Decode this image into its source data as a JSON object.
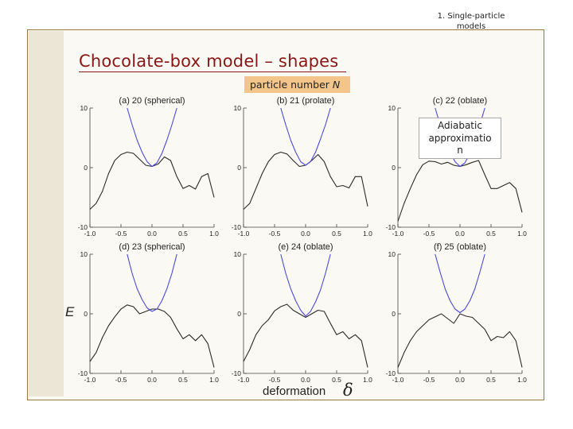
{
  "header": {
    "line1": "1. Single-particle",
    "line2": "models"
  },
  "slide_title": "Chocolate-box model – shapes",
  "particle_number_label": "particle number",
  "particle_number_symbol": "N",
  "adiabatic_box": {
    "line1": "Adiabatic",
    "line2": "approximatio",
    "line3": "n"
  },
  "y_axis_label": "E",
  "x_axis_label": "deformation",
  "x_axis_symbol": "δ",
  "colors": {
    "blue_curve": "#4a4ae0",
    "black_curve": "#2a2a2a",
    "title": "#8a1616",
    "highlight": "#f3c58b",
    "frame": "#9a7a3a"
  },
  "chart_data": [
    {
      "type": "line",
      "title": "(a) 20 (spherical)",
      "xlim": [
        -1.0,
        1.0
      ],
      "ylim": [
        -10,
        10
      ],
      "xticks": [
        "-1.0",
        "-0.5",
        "0.0",
        "0.5",
        "1.0"
      ],
      "yticks": [
        "10",
        "0",
        "-10"
      ],
      "series": [
        {
          "x": [
            -1.0,
            -0.9,
            -0.8,
            -0.7,
            -0.6,
            -0.5,
            -0.4,
            -0.3,
            -0.2,
            -0.1,
            0.0,
            0.1,
            0.2,
            0.3,
            0.4,
            0.5,
            0.6,
            0.7,
            0.8,
            0.9,
            1.0
          ],
          "y": [
            -7.0,
            -6.0,
            -4.0,
            -1.0,
            1.2,
            2.2,
            2.6,
            2.4,
            1.4,
            0.4,
            0.2,
            0.6,
            1.8,
            1.2,
            -1.5,
            -3.5,
            -3.0,
            -3.6,
            -1.5,
            -1.0,
            -5.0
          ]
        },
        {
          "x": [
            -0.4,
            -0.32,
            -0.24,
            -0.16,
            -0.08,
            0.0,
            0.08,
            0.16,
            0.24,
            0.32,
            0.4
          ],
          "y": [
            10,
            7.2,
            4.6,
            2.6,
            1.0,
            0.2,
            0.8,
            2.4,
            4.6,
            7.2,
            10
          ]
        }
      ]
    },
    {
      "type": "line",
      "title": "(b) 21 (prolate)",
      "xlim": [
        -1.0,
        1.0
      ],
      "ylim": [
        -10,
        10
      ],
      "xticks": [
        "-1.0",
        "-0.5",
        "0.0",
        "0.5",
        "1.0"
      ],
      "yticks": [
        "10",
        "0",
        "-10"
      ],
      "series": [
        {
          "x": [
            -1.0,
            -0.9,
            -0.8,
            -0.7,
            -0.6,
            -0.5,
            -0.4,
            -0.3,
            -0.2,
            -0.1,
            0.0,
            0.1,
            0.2,
            0.3,
            0.4,
            0.5,
            0.6,
            0.7,
            0.8,
            0.9,
            1.0
          ],
          "y": [
            -7.0,
            -6.0,
            -3.5,
            -1.0,
            1.0,
            2.2,
            2.6,
            2.3,
            1.2,
            0.2,
            0.4,
            1.2,
            2.2,
            1.0,
            -1.5,
            -3.2,
            -3.0,
            -3.4,
            -1.5,
            -1.5,
            -6.5
          ]
        },
        {
          "x": [
            -0.4,
            -0.32,
            -0.24,
            -0.16,
            -0.08,
            0.0,
            0.08,
            0.16,
            0.24,
            0.32,
            0.4
          ],
          "y": [
            10,
            7.2,
            4.6,
            2.6,
            1.0,
            0.4,
            1.0,
            2.6,
            4.8,
            7.2,
            10
          ]
        }
      ]
    },
    {
      "type": "line",
      "title": "(c) 22 (oblate)",
      "xlim": [
        -1.0,
        1.0
      ],
      "ylim": [
        -10,
        10
      ],
      "xticks": [
        "-1.0",
        "-0.5",
        "0.0",
        "0.5",
        "1.0"
      ],
      "yticks": [
        "10",
        "0",
        "-10"
      ],
      "series": [
        {
          "x": [
            -1.0,
            -0.9,
            -0.8,
            -0.7,
            -0.6,
            -0.5,
            -0.4,
            -0.3,
            -0.2,
            -0.1,
            0.0,
            0.1,
            0.2,
            0.3,
            0.4,
            0.5,
            0.6,
            0.7,
            0.8,
            0.9,
            1.0
          ],
          "y": [
            -9.0,
            -6.0,
            -3.5,
            -1.2,
            0.5,
            1.1,
            1.0,
            0.6,
            0.9,
            0.4,
            0.2,
            0.5,
            0.9,
            1.2,
            -1.2,
            -3.5,
            -3.5,
            -3.0,
            -2.5,
            -3.5,
            -7.5
          ]
        },
        {
          "x": [
            -0.4,
            -0.32,
            -0.24,
            -0.16,
            -0.08,
            0.0,
            0.08,
            0.16,
            0.24,
            0.32,
            0.4
          ],
          "y": [
            10,
            7.2,
            4.6,
            2.6,
            1.0,
            0.2,
            0.8,
            2.4,
            4.6,
            7.2,
            10
          ]
        }
      ]
    },
    {
      "type": "line",
      "title": "(d) 23 (spherical)",
      "xlim": [
        -1.0,
        1.0
      ],
      "ylim": [
        -10,
        10
      ],
      "xticks": [
        "-1.0",
        "-0.5",
        "0.0",
        "0.5",
        "1.0"
      ],
      "yticks": [
        "10",
        "0",
        "-10"
      ],
      "series": [
        {
          "x": [
            -1.0,
            -0.9,
            -0.8,
            -0.7,
            -0.6,
            -0.5,
            -0.4,
            -0.3,
            -0.2,
            -0.1,
            0.0,
            0.1,
            0.2,
            0.3,
            0.4,
            0.5,
            0.6,
            0.7,
            0.8,
            0.9,
            1.0
          ],
          "y": [
            -8.0,
            -6.5,
            -4.0,
            -2.0,
            -0.5,
            0.8,
            1.5,
            1.2,
            0.0,
            0.4,
            0.8,
            0.8,
            0.4,
            -0.6,
            -2.5,
            -4.2,
            -3.5,
            -4.5,
            -3.5,
            -5.0,
            -9.0
          ]
        },
        {
          "x": [
            -0.4,
            -0.32,
            -0.24,
            -0.16,
            -0.08,
            0.0,
            0.08,
            0.16,
            0.24,
            0.32,
            0.4
          ],
          "y": [
            10,
            6.8,
            4.2,
            2.4,
            1.0,
            0.4,
            0.8,
            2.2,
            4.2,
            6.8,
            10
          ]
        }
      ]
    },
    {
      "type": "line",
      "title": "(e) 24 (oblate)",
      "xlim": [
        -1.0,
        1.0
      ],
      "ylim": [
        -10,
        10
      ],
      "xticks": [
        "-1.0",
        "-0.5",
        "0.0",
        "0.5",
        "1.0"
      ],
      "yticks": [
        "10",
        "0",
        "-10"
      ],
      "series": [
        {
          "x": [
            -1.0,
            -0.9,
            -0.8,
            -0.7,
            -0.6,
            -0.5,
            -0.4,
            -0.3,
            -0.2,
            -0.1,
            0.0,
            0.1,
            0.2,
            0.3,
            0.4,
            0.5,
            0.6,
            0.7,
            0.8,
            0.9,
            1.0
          ],
          "y": [
            -8.0,
            -6.0,
            -3.5,
            -2.0,
            -1.0,
            0.5,
            1.2,
            1.6,
            0.6,
            0.0,
            -0.6,
            0.0,
            0.6,
            0.4,
            -1.6,
            -3.5,
            -3.0,
            -4.2,
            -3.5,
            -4.5,
            -9.0
          ]
        },
        {
          "x": [
            -0.4,
            -0.32,
            -0.24,
            -0.16,
            -0.08,
            0.0,
            0.08,
            0.16,
            0.24,
            0.32,
            0.4
          ],
          "y": [
            10,
            6.8,
            4.2,
            2.2,
            0.6,
            -0.4,
            0.4,
            2.0,
            4.0,
            6.8,
            10
          ]
        }
      ]
    },
    {
      "type": "line",
      "title": "(f) 25 (oblate)",
      "xlim": [
        -1.0,
        1.0
      ],
      "ylim": [
        -10,
        10
      ],
      "xticks": [
        "-1.0",
        "-0.5",
        "0.0",
        "0.5",
        "1.0"
      ],
      "yticks": [
        "10",
        "0",
        "-10"
      ],
      "series": [
        {
          "x": [
            -1.0,
            -0.9,
            -0.8,
            -0.7,
            -0.6,
            -0.5,
            -0.4,
            -0.3,
            -0.2,
            -0.1,
            0.0,
            0.1,
            0.2,
            0.3,
            0.4,
            0.5,
            0.6,
            0.7,
            0.8,
            0.9,
            1.0
          ],
          "y": [
            -9.0,
            -6.5,
            -4.5,
            -3.0,
            -2.0,
            -1.0,
            -0.5,
            0.0,
            -0.8,
            -1.6,
            0.0,
            -0.4,
            -0.6,
            -1.6,
            -2.6,
            -4.5,
            -3.8,
            -4.0,
            -3.0,
            -4.5,
            -9.0
          ]
        },
        {
          "x": [
            -0.4,
            -0.32,
            -0.24,
            -0.16,
            -0.08,
            0.0,
            0.08,
            0.16,
            0.24,
            0.32,
            0.4
          ],
          "y": [
            10,
            7.0,
            4.2,
            2.2,
            0.8,
            0.2,
            0.8,
            2.2,
            4.2,
            7.0,
            10
          ]
        }
      ]
    }
  ]
}
